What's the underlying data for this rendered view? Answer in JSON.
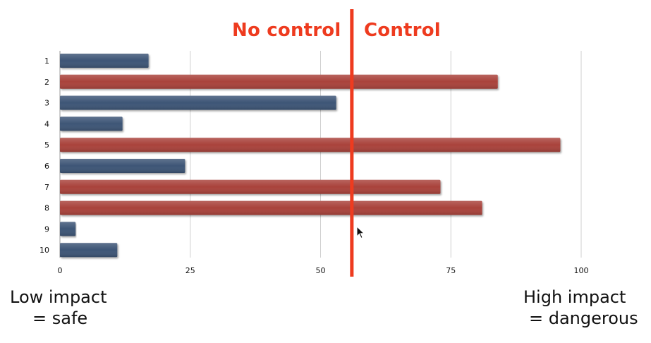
{
  "regions": {
    "left_label": "No control",
    "right_label": "Control"
  },
  "notes": {
    "low_line1": "Low impact",
    "low_line2": "= safe",
    "high_line1": "High impact",
    "high_line2": "= dangerous"
  },
  "colors": {
    "safe": "#3e5576",
    "dangerous": "#a9433b",
    "divider": "#ee3b1f",
    "grid": "#cfcfcf"
  },
  "chart_data": {
    "type": "bar",
    "orientation": "horizontal",
    "categories": [
      "1",
      "2",
      "3",
      "4",
      "5",
      "6",
      "7",
      "8",
      "9",
      "10"
    ],
    "values": [
      17,
      84,
      53,
      12,
      96,
      24,
      73,
      81,
      3,
      11
    ],
    "bar_colors": [
      "safe",
      "dangerous",
      "safe",
      "safe",
      "dangerous",
      "safe",
      "dangerous",
      "dangerous",
      "safe",
      "safe"
    ],
    "xlim": [
      0,
      100
    ],
    "x_ticks": [
      0,
      25,
      50,
      75,
      100
    ],
    "divider_value": 56,
    "grid": true,
    "title": "",
    "xlabel": "",
    "ylabel": ""
  }
}
